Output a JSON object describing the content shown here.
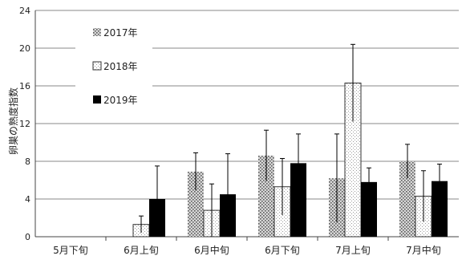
{
  "chart_data": {
    "type": "bar",
    "title": "",
    "xlabel": "",
    "ylabel": "卵巣の熟度指数",
    "ylim": [
      0,
      24
    ],
    "yticks": [
      0,
      4,
      8,
      12,
      16,
      20,
      24
    ],
    "grid": true,
    "legend_position": "upper-left",
    "categories": [
      "5月下旬",
      "6月上旬",
      "6月中旬",
      "6月下旬",
      "7月上旬",
      "7月中旬"
    ],
    "series": [
      {
        "name": "2017年",
        "pattern": "dotted-gray",
        "values": [
          null,
          null,
          6.9,
          8.6,
          6.2,
          8.0
        ],
        "errors": [
          null,
          null,
          2.0,
          2.7,
          4.7,
          1.8
        ]
      },
      {
        "name": "2018年",
        "pattern": "fine-dotted-white",
        "values": [
          null,
          1.3,
          2.8,
          5.3,
          16.3,
          4.3
        ],
        "errors": [
          null,
          0.9,
          2.8,
          3.0,
          4.1,
          2.7
        ]
      },
      {
        "name": "2019年",
        "pattern": "solid-black",
        "values": [
          null,
          4.0,
          4.5,
          7.8,
          5.8,
          5.9
        ],
        "errors": [
          null,
          3.5,
          4.3,
          3.1,
          1.5,
          1.8
        ]
      }
    ]
  }
}
